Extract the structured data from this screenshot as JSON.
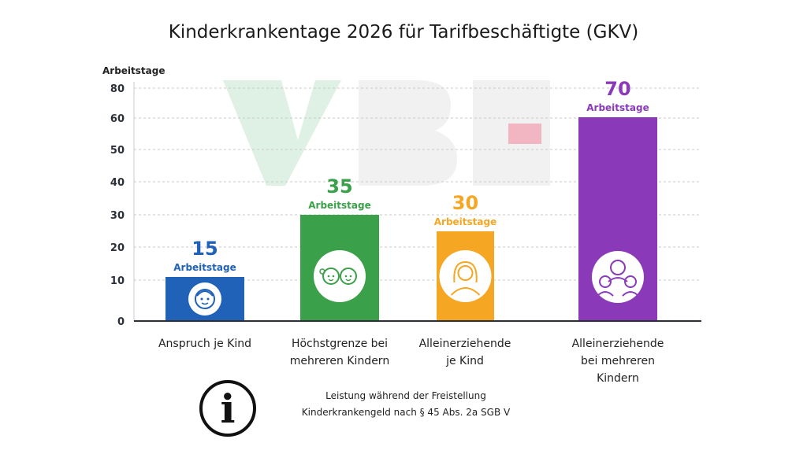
{
  "chart_data": {
    "type": "bar",
    "title": "Kinderkrankentage 2026 für Tarifbeschäftigte (GKV)",
    "ylabel": "Arbeitstage",
    "yticks": [
      0,
      10,
      20,
      30,
      40,
      50,
      60,
      80
    ],
    "categories": [
      "Anspruch je Kind",
      "Höchstgrenze bei mehreren Kindern",
      "Alleinerziehende je Kind",
      "Alleinerziehende bei mehreren Kindern"
    ],
    "category_lines": [
      [
        "Anspruch je Kind"
      ],
      [
        "Höchstgrenze bei",
        "mehreren Kindern"
      ],
      [
        "Alleinerziehende",
        "je Kind"
      ],
      [
        "Alleinerziehende",
        "bei mehreren",
        "Kindern"
      ]
    ],
    "values": [
      15,
      35,
      30,
      70
    ],
    "value_unit": "Arbeitstage",
    "colors": [
      "#1f62b8",
      "#3ba04a",
      "#f5a623",
      "#8a3ab9"
    ],
    "icons": [
      "child-face-icon",
      "two-children-icon",
      "single-parent-icon",
      "parent-with-children-icon"
    ],
    "grid": true
  },
  "watermark": "VBE",
  "note": {
    "line1": "Leistung während der Freistellung",
    "line2": "Kinderkrankengeld nach § 45 Abs. 2a SGB V"
  },
  "info_icon_glyph": "i"
}
